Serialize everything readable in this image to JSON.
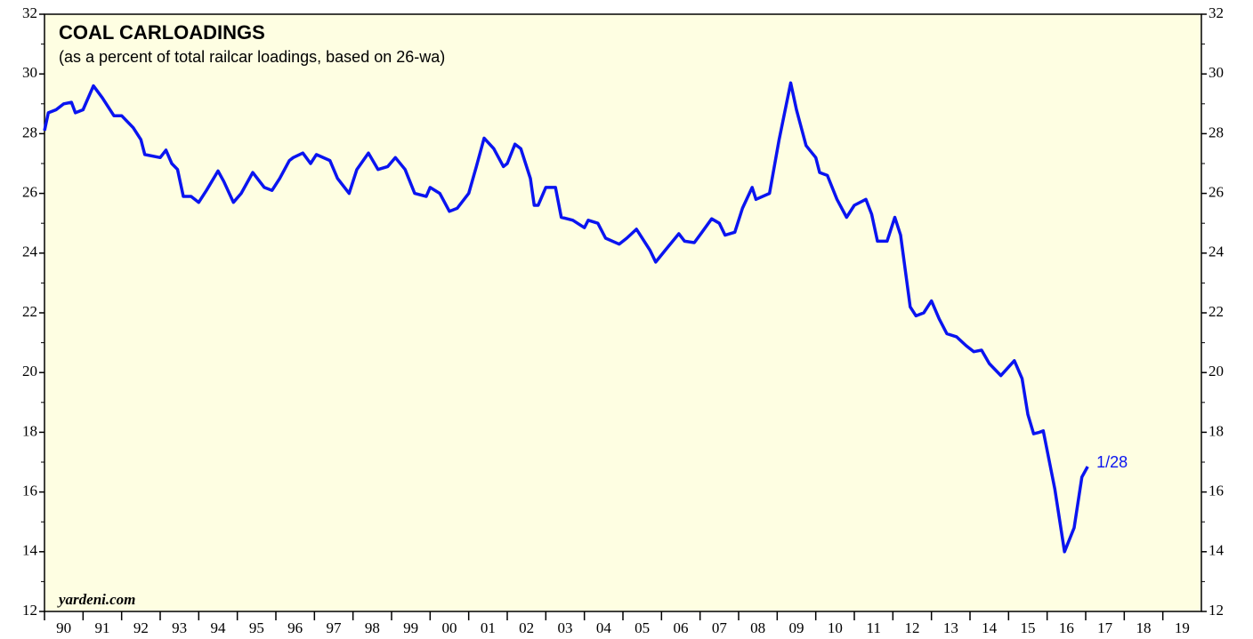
{
  "chart_data": {
    "type": "line",
    "title": "COAL CARLOADINGS",
    "subtitle": "(as a percent of total railcar loadings, based on 26-wa)",
    "source": "yardeni.com",
    "annotation": "1/28",
    "color": "#0a14f0",
    "background": "#fefee2",
    "xlim": [
      1990,
      2020
    ],
    "xticks": [
      {
        "value": 1990,
        "label": "90"
      },
      {
        "value": 1991,
        "label": "91"
      },
      {
        "value": 1992,
        "label": "92"
      },
      {
        "value": 1993,
        "label": "93"
      },
      {
        "value": 1994,
        "label": "94"
      },
      {
        "value": 1995,
        "label": "95"
      },
      {
        "value": 1996,
        "label": "96"
      },
      {
        "value": 1997,
        "label": "97"
      },
      {
        "value": 1998,
        "label": "98"
      },
      {
        "value": 1999,
        "label": "99"
      },
      {
        "value": 2000,
        "label": "00"
      },
      {
        "value": 2001,
        "label": "01"
      },
      {
        "value": 2002,
        "label": "02"
      },
      {
        "value": 2003,
        "label": "03"
      },
      {
        "value": 2004,
        "label": "04"
      },
      {
        "value": 2005,
        "label": "05"
      },
      {
        "value": 2006,
        "label": "06"
      },
      {
        "value": 2007,
        "label": "07"
      },
      {
        "value": 2008,
        "label": "08"
      },
      {
        "value": 2009,
        "label": "09"
      },
      {
        "value": 2010,
        "label": "10"
      },
      {
        "value": 2011,
        "label": "11"
      },
      {
        "value": 2012,
        "label": "12"
      },
      {
        "value": 2013,
        "label": "13"
      },
      {
        "value": 2014,
        "label": "14"
      },
      {
        "value": 2015,
        "label": "15"
      },
      {
        "value": 2016,
        "label": "16"
      },
      {
        "value": 2017,
        "label": "17"
      },
      {
        "value": 2018,
        "label": "18"
      },
      {
        "value": 2019,
        "label": "19"
      }
    ],
    "ylim": [
      12,
      32
    ],
    "yticks": [
      12,
      14,
      16,
      18,
      20,
      22,
      24,
      26,
      28,
      30,
      32
    ],
    "y2lim": [
      12,
      32
    ],
    "y2ticks": [
      12,
      14,
      16,
      18,
      20,
      22,
      24,
      26,
      28,
      30,
      32
    ],
    "x": [
      1990.0,
      1990.1,
      1990.3,
      1990.5,
      1990.7,
      1990.8,
      1991.0,
      1991.27,
      1991.5,
      1991.8,
      1992.0,
      1992.3,
      1992.5,
      1992.6,
      1993.0,
      1993.15,
      1993.3,
      1993.45,
      1993.6,
      1993.8,
      1994.0,
      1994.2,
      1994.5,
      1994.65,
      1994.9,
      1995.1,
      1995.4,
      1995.7,
      1995.9,
      1996.1,
      1996.35,
      1996.45,
      1996.7,
      1996.9,
      1997.05,
      1997.4,
      1997.6,
      1997.9,
      1998.1,
      1998.4,
      1998.65,
      1998.9,
      1999.1,
      1999.35,
      1999.6,
      1999.9,
      2000.0,
      2000.25,
      2000.5,
      2000.7,
      2001.0,
      2001.2,
      2001.4,
      2001.65,
      2001.9,
      2002.0,
      2002.2,
      2002.35,
      2002.6,
      2002.7,
      2002.8,
      2003.0,
      2003.25,
      2003.4,
      2003.7,
      2004.0,
      2004.1,
      2004.35,
      2004.55,
      2004.9,
      2005.1,
      2005.35,
      2005.45,
      2005.7,
      2005.85,
      2006.1,
      2006.45,
      2006.6,
      2006.85,
      2007.05,
      2007.3,
      2007.5,
      2007.65,
      2007.9,
      2008.1,
      2008.35,
      2008.45,
      2008.8,
      2009.05,
      2009.35,
      2009.5,
      2009.75,
      2010.0,
      2010.1,
      2010.3,
      2010.55,
      2010.8,
      2011.0,
      2011.3,
      2011.45,
      2011.6,
      2011.85,
      2012.05,
      2012.2,
      2012.45,
      2012.6,
      2012.8,
      2013.0,
      2013.2,
      2013.4,
      2013.65,
      2013.9,
      2014.1,
      2014.3,
      2014.5,
      2014.8,
      2015.15,
      2015.35,
      2015.5,
      2015.65,
      2015.8,
      2015.9,
      2016.2,
      2016.45,
      2016.7,
      2016.9,
      2017.05
    ],
    "values": [
      28.1,
      28.7,
      28.8,
      29.0,
      29.05,
      28.7,
      28.8,
      29.6,
      29.2,
      28.6,
      28.6,
      28.2,
      27.8,
      27.3,
      27.2,
      27.45,
      27.0,
      26.8,
      25.9,
      25.9,
      25.7,
      26.1,
      26.75,
      26.4,
      25.7,
      26.0,
      26.7,
      26.2,
      26.1,
      26.5,
      27.1,
      27.2,
      27.35,
      27.0,
      27.3,
      27.1,
      26.5,
      26.0,
      26.8,
      27.35,
      26.8,
      26.9,
      27.2,
      26.8,
      26.0,
      25.9,
      26.2,
      26.0,
      25.4,
      25.5,
      26.0,
      26.9,
      27.85,
      27.5,
      26.9,
      27.0,
      27.65,
      27.5,
      26.5,
      25.6,
      25.6,
      26.2,
      26.2,
      25.2,
      25.1,
      24.85,
      25.1,
      25.0,
      24.5,
      24.3,
      24.5,
      24.8,
      24.6,
      24.1,
      23.7,
      24.1,
      24.65,
      24.4,
      24.35,
      24.7,
      25.15,
      25.0,
      24.6,
      24.7,
      25.5,
      26.2,
      25.8,
      26.0,
      27.8,
      29.7,
      28.8,
      27.6,
      27.2,
      26.7,
      26.6,
      25.8,
      25.2,
      25.6,
      25.8,
      25.3,
      24.4,
      24.4,
      25.2,
      24.6,
      22.2,
      21.9,
      22.0,
      22.4,
      21.8,
      21.3,
      21.2,
      20.9,
      20.7,
      20.75,
      20.3,
      19.9,
      20.4,
      19.8,
      18.6,
      17.95,
      18.0,
      18.05,
      16.1,
      14.0,
      14.8,
      16.5,
      16.85
    ]
  }
}
